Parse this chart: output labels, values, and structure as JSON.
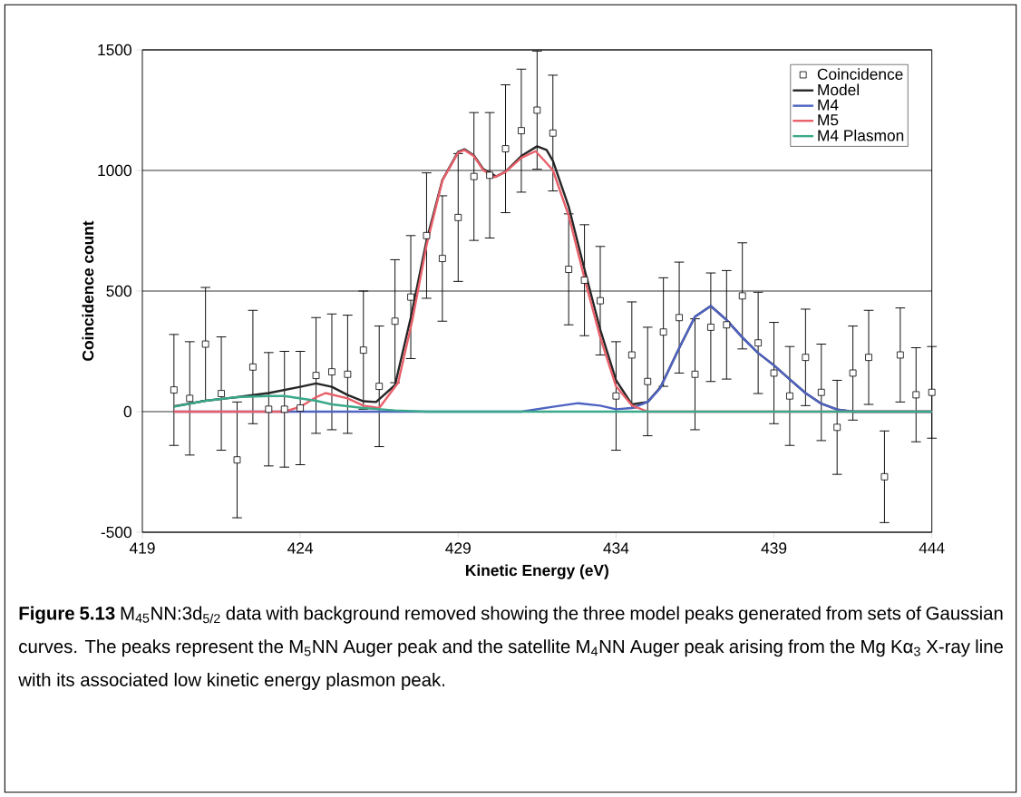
{
  "chart_data": {
    "type": "line",
    "xlabel": "Kinetic Energy (eV)",
    "ylabel": "Coincidence count",
    "annotations": [
      "**Figure 5.13** M$_{45}$NN:3d$_{5/2}$ data with background removed showing the three model peaks generated from sets of Gaussian curves. The peaks represent the M$_{5}$NN Auger peak and the satellite M$_{4}$NN Auger peak arising from the Mg Kα$_{3}$ X-ray line with its associated low kinetic energy plasmon peak."
    ],
    "xlim": [
      419,
      444
    ],
    "ylim": [
      -500,
      1500
    ],
    "xticks": [
      419,
      424,
      429,
      434,
      439,
      444
    ],
    "yticks": [
      -500,
      0,
      500,
      1000,
      1500
    ],
    "grid": "y",
    "legend": "top right",
    "series": [
      {
        "name": "Coincidence",
        "type": "scatter",
        "marker": "square",
        "color": "#000000",
        "x": [
          420,
          420.5,
          421,
          421.5,
          422,
          422.5,
          423,
          423.5,
          424,
          424.5,
          425,
          425.5,
          426,
          426.5,
          427,
          427.5,
          428,
          428.5,
          429,
          429.5,
          430,
          430.5,
          431,
          431.5,
          432,
          432.5,
          433,
          433.5,
          434,
          434.5,
          435,
          435.5,
          436,
          436.5,
          437,
          437.5,
          438,
          438.5,
          439,
          439.5,
          440,
          440.5,
          441,
          441.5,
          442,
          442.5,
          443,
          443.5,
          444
        ],
        "values": [
          90,
          55,
          280,
          75,
          -200,
          185,
          10,
          10,
          15,
          150,
          165,
          155,
          255,
          105,
          375,
          475,
          730,
          635,
          805,
          975,
          980,
          1090,
          1165,
          1250,
          1155,
          590,
          545,
          460,
          65,
          235,
          125,
          330,
          390,
          155,
          350,
          360,
          480,
          285,
          160,
          65,
          225,
          80,
          -65,
          160,
          225,
          -270,
          235,
          70,
          80
        ],
        "errors": [
          230,
          235,
          235,
          235,
          240,
          235,
          235,
          240,
          235,
          240,
          240,
          245,
          245,
          250,
          255,
          255,
          260,
          260,
          265,
          265,
          260,
          265,
          255,
          245,
          240,
          230,
          230,
          225,
          225,
          220,
          225,
          225,
          230,
          230,
          225,
          225,
          220,
          210,
          210,
          205,
          200,
          200,
          195,
          195,
          195,
          190,
          195,
          195,
          190
        ]
      },
      {
        "name": "Model",
        "color": "#262626",
        "x": [
          420,
          421,
          422,
          423,
          424,
          424.5,
          425,
          425.5,
          426,
          426.4,
          427,
          427.5,
          428,
          428.5,
          429,
          429.2,
          429.5,
          429.8,
          430.2,
          430.5,
          431,
          431.5,
          431.8,
          432,
          432.5,
          433,
          433.5,
          434,
          434.5,
          435,
          435.4,
          436,
          436.5,
          437,
          437.5,
          438,
          438.5,
          439,
          439.5,
          440,
          440.5,
          441,
          441.5,
          442,
          444
        ],
        "values": [
          22,
          45,
          60,
          77,
          103,
          117,
          103,
          69,
          43,
          40,
          110,
          390,
          710,
          960,
          1078,
          1088,
          1062,
          1005,
          975,
          995,
          1060,
          1100,
          1085,
          1040,
          850,
          590,
          340,
          130,
          30,
          40,
          100,
          264,
          394,
          438,
          380,
          308,
          243,
          192,
          134,
          77,
          33,
          9,
          0,
          0,
          0
        ]
      },
      {
        "name": "M4",
        "color": "#4f63c2",
        "x": [
          420,
          431,
          432,
          432.8,
          433.5,
          434,
          434.5,
          435,
          435.4,
          436,
          436.5,
          437,
          437.5,
          438,
          438.5,
          439,
          439.5,
          440,
          440.5,
          441,
          441.5,
          444
        ],
        "values": [
          0,
          0,
          20,
          35,
          25,
          10,
          15,
          40,
          98,
          264,
          394,
          438,
          380,
          308,
          243,
          192,
          134,
          77,
          33,
          9,
          0,
          0
        ]
      },
      {
        "name": "M5",
        "color": "#e8606a",
        "x": [
          420,
          423.5,
          424,
          424.5,
          424.8,
          425.5,
          426,
          426.5,
          427.1,
          427.55,
          428,
          428.5,
          429,
          429.2,
          429.5,
          429.8,
          430.15,
          430.5,
          431,
          431.45,
          431.7,
          432,
          432.5,
          433,
          433.5,
          434,
          434.5,
          435,
          444
        ],
        "values": [
          0,
          0,
          20,
          60,
          77,
          55,
          25,
          15,
          120,
          380,
          690,
          958,
          1074,
          1085,
          1059,
          1001,
          972,
          994,
          1052,
          1080,
          1045,
          1001,
          813,
          553,
          308,
          105,
          26,
          0,
          0
        ]
      },
      {
        "name": "M4 Plasmon",
        "color": "#3aa88a",
        "x": [
          420,
          421,
          422,
          423,
          423.5,
          424,
          424.5,
          425,
          426,
          427,
          428,
          444
        ],
        "values": [
          20,
          45,
          60,
          65,
          65,
          55,
          45,
          30,
          15,
          5,
          0,
          0
        ]
      }
    ]
  }
}
